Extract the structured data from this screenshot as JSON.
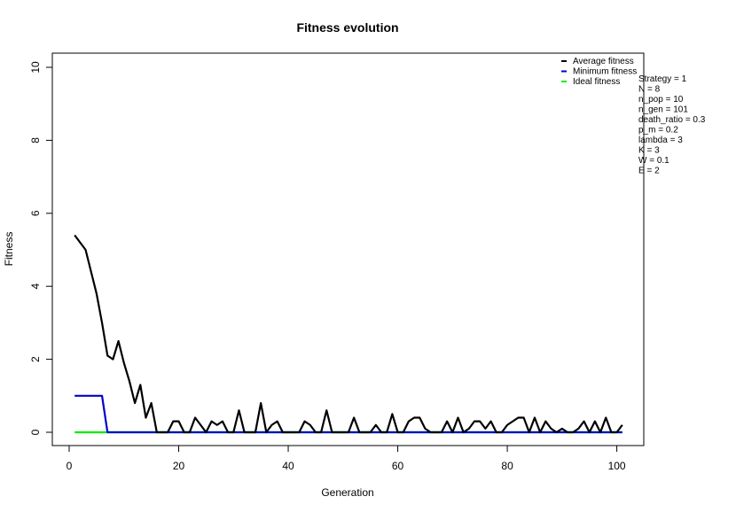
{
  "chart_data": {
    "type": "line",
    "title": "Fitness evolution",
    "xlabel": "Generation",
    "ylabel": "Fitness",
    "xlim": [
      1,
      101
    ],
    "ylim": [
      0,
      10
    ],
    "x_ticks": [
      0,
      20,
      40,
      60,
      80,
      100
    ],
    "y_ticks": [
      0,
      2,
      4,
      6,
      8,
      10
    ],
    "grid": false,
    "legend_position": "top-right",
    "series": [
      {
        "name": "Average fitness",
        "color": "#000000",
        "x": [
          1,
          2,
          3,
          4,
          5,
          6,
          7,
          8,
          9,
          10,
          11,
          12,
          13,
          14,
          15,
          16,
          17,
          18,
          19,
          20,
          21,
          22,
          23,
          24,
          25,
          26,
          27,
          28,
          29,
          30,
          31,
          32,
          33,
          34,
          35,
          36,
          37,
          38,
          39,
          40,
          41,
          42,
          43,
          44,
          45,
          46,
          47,
          48,
          49,
          50,
          51,
          52,
          53,
          54,
          55,
          56,
          57,
          58,
          59,
          60,
          61,
          62,
          63,
          64,
          65,
          66,
          67,
          68,
          69,
          70,
          71,
          72,
          73,
          74,
          75,
          76,
          77,
          78,
          79,
          80,
          81,
          82,
          83,
          84,
          85,
          86,
          87,
          88,
          89,
          90,
          91,
          92,
          93,
          94,
          95,
          96,
          97,
          98,
          99,
          100,
          101
        ],
        "values": [
          5.4,
          5.2,
          5.0,
          4.4,
          3.8,
          3.0,
          2.1,
          2.0,
          2.5,
          1.9,
          1.4,
          0.8,
          1.3,
          0.4,
          0.8,
          0,
          0,
          0,
          0.3,
          0.3,
          0,
          0,
          0.4,
          0.2,
          0,
          0.3,
          0.2,
          0.3,
          0,
          0,
          0.6,
          0,
          0,
          0,
          0.8,
          0,
          0.2,
          0.3,
          0,
          0,
          0,
          0,
          0.3,
          0.2,
          0,
          0,
          0.6,
          0,
          0,
          0,
          0,
          0.4,
          0,
          0,
          0,
          0.2,
          0,
          0,
          0.5,
          0,
          0,
          0.3,
          0.4,
          0.4,
          0.1,
          0,
          0,
          0,
          0.3,
          0,
          0.4,
          0,
          0.1,
          0.3,
          0.3,
          0.1,
          0.3,
          0,
          0,
          0.2,
          0.3,
          0.4,
          0.4,
          0,
          0.4,
          0,
          0.3,
          0.1,
          0,
          0.1,
          0,
          0,
          0.1,
          0.3,
          0,
          0.3,
          0,
          0.4,
          0,
          0,
          0.2
        ]
      },
      {
        "name": "Minimum fitness",
        "color": "#0000cd",
        "x": [
          1,
          2,
          3,
          4,
          5,
          6,
          7,
          8,
          9,
          10,
          11,
          12,
          13,
          14,
          15,
          16,
          17,
          18,
          19,
          20,
          21,
          22,
          23,
          24,
          25,
          26,
          27,
          28,
          29,
          30,
          31,
          32,
          33,
          34,
          35,
          36,
          37,
          38,
          39,
          40,
          41,
          42,
          43,
          44,
          45,
          46,
          47,
          48,
          49,
          50,
          51,
          52,
          53,
          54,
          55,
          56,
          57,
          58,
          59,
          60,
          61,
          62,
          63,
          64,
          65,
          66,
          67,
          68,
          69,
          70,
          71,
          72,
          73,
          74,
          75,
          76,
          77,
          78,
          79,
          80,
          81,
          82,
          83,
          84,
          85,
          86,
          87,
          88,
          89,
          90,
          91,
          92,
          93,
          94,
          95,
          96,
          97,
          98,
          99,
          100,
          101
        ],
        "values": [
          1,
          1,
          1,
          1,
          1,
          1,
          0,
          0,
          0,
          0,
          0,
          0,
          0,
          0,
          0,
          0,
          0,
          0,
          0,
          0,
          0,
          0,
          0,
          0,
          0,
          0,
          0,
          0,
          0,
          0,
          0,
          0,
          0,
          0,
          0,
          0,
          0,
          0,
          0,
          0,
          0,
          0,
          0,
          0,
          0,
          0,
          0,
          0,
          0,
          0,
          0,
          0,
          0,
          0,
          0,
          0,
          0,
          0,
          0,
          0,
          0,
          0,
          0,
          0,
          0,
          0,
          0,
          0,
          0,
          0,
          0,
          0,
          0,
          0,
          0,
          0,
          0,
          0,
          0,
          0,
          0,
          0,
          0,
          0,
          0,
          0,
          0,
          0,
          0,
          0,
          0,
          0,
          0,
          0,
          0,
          0,
          0,
          0,
          0,
          0,
          0
        ]
      },
      {
        "name": "Ideal fitness",
        "color": "#00ee00",
        "x": [
          1,
          101
        ],
        "values": [
          0,
          0
        ]
      }
    ],
    "annotations": [
      "Strategy = 1",
      "N = 8",
      "n_pop = 10",
      "n_gen = 101",
      "death_ratio = 0.3",
      "p_m = 0.2",
      "lambda = 3",
      "K = 3",
      "W = 0.1",
      "E = 2"
    ]
  }
}
